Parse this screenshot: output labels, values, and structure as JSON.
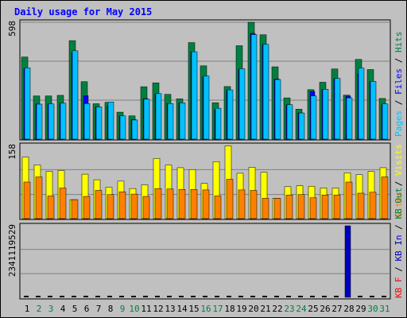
{
  "title": "Daily usage for May 2015",
  "colors": {
    "background": "#c0c0c0",
    "title": "#0000ff",
    "pages": "#00c0ff",
    "files": "#0000ff",
    "hits": "#008040",
    "visits": "#ffff00",
    "sites": "#ff8000",
    "kb_in": "#0000c0",
    "kb_out": "#008040",
    "kb_f": "#ff0000",
    "weekday": "#000000",
    "weekend": "#008040"
  },
  "chart_data": [
    {
      "type": "bar",
      "name_hint": "hits-files-pages",
      "ylabel_parts": [
        "Pages",
        "Files",
        "Hits"
      ],
      "ymax_label": "598",
      "ylim": [
        0,
        598
      ],
      "categories": [
        "1",
        "2",
        "3",
        "4",
        "5",
        "6",
        "7",
        "8",
        "9",
        "10",
        "11",
        "12",
        "13",
        "14",
        "15",
        "16",
        "17",
        "18",
        "19",
        "20",
        "21",
        "22",
        "23",
        "24",
        "25",
        "26",
        "27",
        "28",
        "29",
        "30",
        "31"
      ],
      "series": [
        {
          "name": "Hits",
          "values": [
            420,
            221,
            221,
            224,
            504,
            294,
            181,
            188,
            138,
            119,
            268,
            288,
            229,
            206,
            494,
            375,
            186,
            269,
            478,
            598,
            534,
            370,
            211,
            153,
            253,
            291,
            359,
            225,
            408,
            356,
            208
          ]
        },
        {
          "name": "Files",
          "values": [
            361,
            179,
            180,
            184,
            443,
            222,
            165,
            170,
            119,
            100,
            207,
            230,
            182,
            186,
            446,
            318,
            149,
            250,
            356,
            541,
            484,
            308,
            176,
            134,
            244,
            254,
            309,
            220,
            334,
            296,
            177
          ]
        },
        {
          "name": "Pages",
          "values": [
            365,
            179,
            180,
            184,
            452,
            182,
            165,
            190,
            119,
            98,
            205,
            233,
            182,
            186,
            447,
            323,
            158,
            252,
            360,
            535,
            485,
            305,
            176,
            134,
            221,
            255,
            311,
            211,
            364,
            296,
            180
          ]
        }
      ]
    },
    {
      "type": "bar",
      "name_hint": "visits-sites",
      "ylabel_parts": [
        "Sites",
        "Visits"
      ],
      "ymax_label": "158",
      "ylim": [
        0,
        158
      ],
      "categories": [
        "1",
        "2",
        "3",
        "4",
        "5",
        "6",
        "7",
        "8",
        "9",
        "10",
        "11",
        "12",
        "13",
        "14",
        "15",
        "16",
        "17",
        "18",
        "19",
        "20",
        "21",
        "22",
        "23",
        "24",
        "25",
        "26",
        "27",
        "28",
        "29",
        "30",
        "31"
      ],
      "series": [
        {
          "name": "Visits",
          "values": [
            133,
            116,
            102,
            104,
            41,
            96,
            84,
            68,
            81,
            65,
            73,
            130,
            116,
            110,
            106,
            76,
            123,
            157,
            98,
            111,
            100,
            44,
            69,
            71,
            70,
            66,
            66,
            99,
            95,
            102,
            110
          ]
        },
        {
          "name": "Sites",
          "values": [
            79,
            90,
            49,
            66,
            41,
            48,
            61,
            52,
            58,
            53,
            48,
            65,
            64,
            63,
            63,
            62,
            49,
            85,
            62,
            61,
            44,
            44,
            51,
            52,
            45,
            51,
            51,
            79,
            55,
            57,
            90
          ]
        }
      ]
    },
    {
      "type": "bar",
      "name_hint": "kbytes",
      "ylabel_parts": [
        "KB F",
        "KB In",
        "KB Out"
      ],
      "ymax_label": "2341119529",
      "ylim": [
        0,
        2341119529
      ],
      "categories": [
        "1",
        "2",
        "3",
        "4",
        "5",
        "6",
        "7",
        "8",
        "9",
        "10",
        "11",
        "12",
        "13",
        "14",
        "15",
        "16",
        "17",
        "18",
        "19",
        "20",
        "21",
        "22",
        "23",
        "24",
        "25",
        "26",
        "27",
        "28",
        "29",
        "30",
        "31"
      ],
      "series": [
        {
          "name": "KB In",
          "values": [
            0,
            0,
            0,
            0,
            0,
            0,
            0,
            0,
            0,
            0,
            0,
            0,
            0,
            0,
            0,
            0,
            0,
            0,
            0,
            0,
            0,
            0,
            0,
            0,
            0,
            0,
            0,
            2341119529,
            0,
            0,
            0
          ]
        },
        {
          "name": "KB F",
          "values": [
            0,
            0,
            0,
            0,
            0,
            0,
            0,
            0,
            0,
            0,
            0,
            0,
            0,
            0,
            0,
            0,
            0,
            0,
            0,
            0,
            0,
            0,
            0,
            0,
            0,
            0,
            0,
            0,
            0,
            0,
            0
          ]
        },
        {
          "name": "KB Out",
          "values": [
            0,
            0,
            0,
            0,
            0,
            0,
            0,
            0,
            0,
            0,
            0,
            0,
            0,
            0,
            0,
            0,
            0,
            0,
            0,
            0,
            0,
            0,
            0,
            0,
            0,
            0,
            0,
            0,
            0,
            0,
            0
          ]
        }
      ]
    }
  ],
  "weekend_days": [
    "2",
    "3",
    "9",
    "10",
    "16",
    "17",
    "23",
    "24",
    "30",
    "31"
  ]
}
